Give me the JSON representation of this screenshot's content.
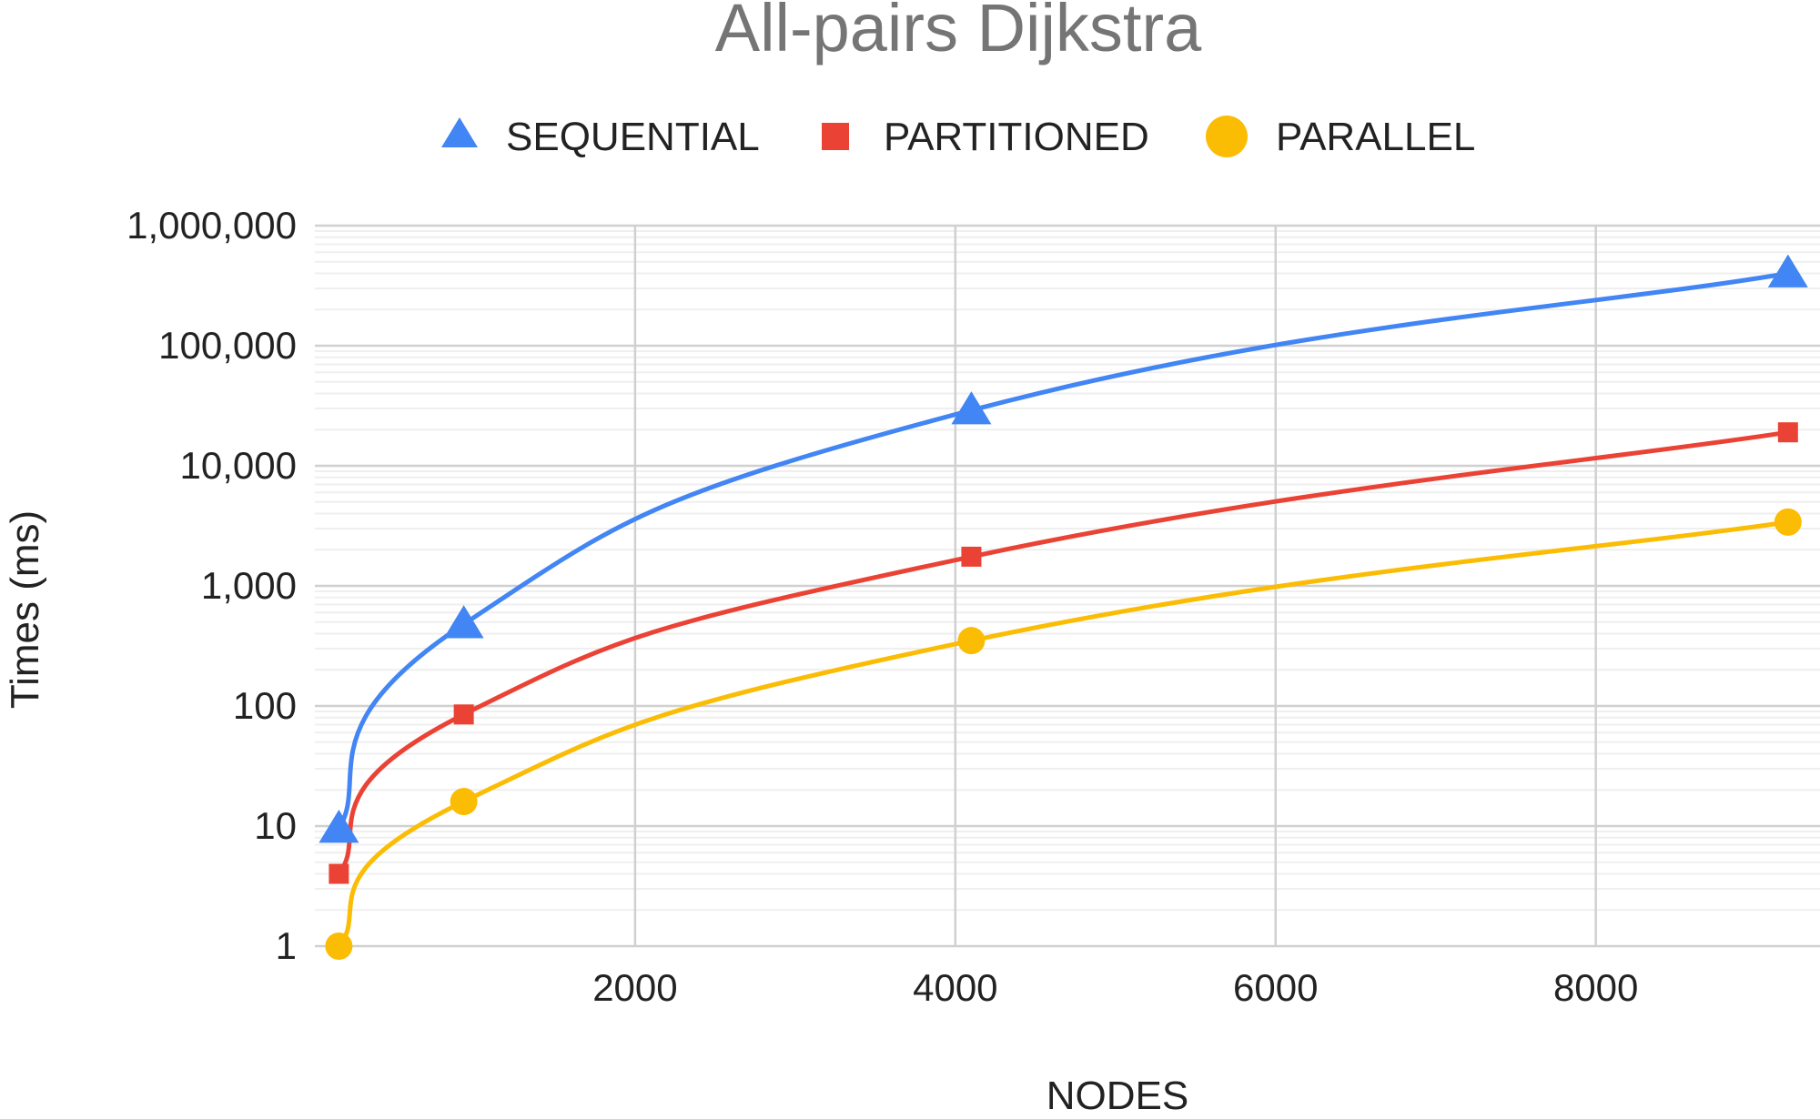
{
  "chart_data": {
    "type": "line",
    "title": "All-pairs Dijkstra",
    "xlabel": "NODES",
    "ylabel": "Times (ms)",
    "x_scale": "linear",
    "y_scale": "log",
    "xlim": [
      0,
      9400
    ],
    "ylim": [
      1,
      1000000
    ],
    "x_ticks": [
      2000,
      4000,
      6000,
      8000
    ],
    "x_tick_labels": [
      "2000",
      "4000",
      "6000",
      "8000"
    ],
    "y_ticks": [
      1,
      10,
      100,
      1000,
      10000,
      100000,
      1000000
    ],
    "y_tick_labels": [
      "1",
      "10",
      "100",
      "1,000",
      "10,000",
      "100,000",
      "1,000,000"
    ],
    "grid": true,
    "legend_position": "top",
    "series": [
      {
        "name": "SEQUENTIAL",
        "color": "#4285F4",
        "marker": "triangle",
        "x": [
          150,
          930,
          4100,
          9200
        ],
        "values": [
          9.5,
          480,
          29000,
          400000
        ]
      },
      {
        "name": "PARTITIONED",
        "color": "#EA4335",
        "marker": "square",
        "x": [
          150,
          930,
          4100,
          9200
        ],
        "values": [
          4,
          85,
          1750,
          19000
        ]
      },
      {
        "name": "PARALLEL",
        "color": "#FBBC04",
        "marker": "circle",
        "x": [
          150,
          930,
          4100,
          9200
        ],
        "values": [
          1,
          16,
          350,
          3400
        ]
      }
    ]
  }
}
